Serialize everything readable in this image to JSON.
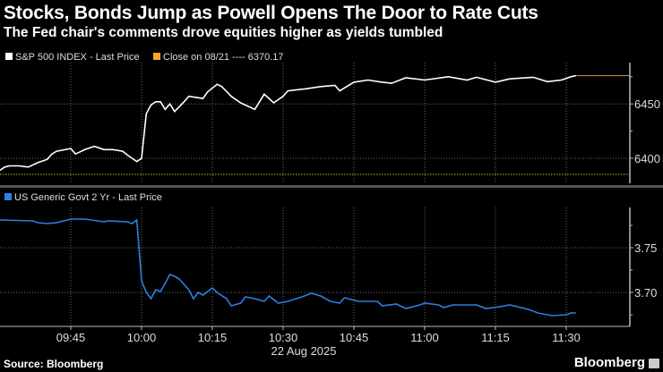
{
  "title": "Stocks, Bonds Jump as Powell Opens The Door to Rate Cuts",
  "subtitle": "The Fed chair's comments drove equities higher as yields tumbled",
  "source": "Source: Bloomberg",
  "logo": "Bloomberg",
  "chart_data": [
    {
      "type": "line",
      "legend": [
        "S&P 500 INDEX - Last Price",
        "Close on 08/21 ---- 6370.17"
      ],
      "series": [
        {
          "name": "S&P 500 INDEX - Last Price",
          "color": "#ffffff",
          "x": [
            "09:30",
            "09:31",
            "09:32",
            "09:34",
            "09:36",
            "09:38",
            "09:40",
            "09:41",
            "09:42",
            "09:45",
            "09:46",
            "09:48",
            "09:50",
            "09:52",
            "09:54",
            "09:56",
            "09:57",
            "09:59",
            "10:00",
            "10:01",
            "10:02",
            "10:03",
            "10:04",
            "10:05",
            "10:06",
            "10:07",
            "10:09",
            "10:10",
            "10:13",
            "10:14",
            "10:16",
            "10:17",
            "10:19",
            "10:21",
            "10:24",
            "10:26",
            "10:28",
            "10:30",
            "10:31",
            "10:35",
            "10:38",
            "10:41",
            "10:42",
            "10:45",
            "10:48",
            "10:51",
            "10:53",
            "10:56",
            "11:00",
            "11:05",
            "11:09",
            "11:11",
            "11:15",
            "11:18",
            "11:23",
            "11:26",
            "11:29",
            "11:31",
            "11:32"
          ],
          "values": [
            6389,
            6392,
            6393,
            6393,
            6392,
            6396,
            6399,
            6404,
            6406.5,
            6409,
            6404,
            6408,
            6411,
            6408,
            6408,
            6406.5,
            6403,
            6397,
            6400,
            6441,
            6449,
            6452,
            6452,
            6445,
            6450,
            6443,
            6452,
            6457,
            6455,
            6461,
            6468,
            6466,
            6457,
            6451,
            6445,
            6459,
            6451,
            6457,
            6462,
            6464,
            6466,
            6467,
            6462,
            6470,
            6472,
            6470,
            6469,
            6474,
            6472,
            6475,
            6472,
            6474.5,
            6470,
            6473,
            6474.5,
            6470.5,
            6472,
            6475,
            6476
          ]
        }
      ],
      "reference_line": {
        "name": "Close on 08/21",
        "value": 6370.17,
        "color": "#f5a623"
      },
      "last_price_color": "#c8a04a",
      "y_ticks": [
        "6400",
        "6450"
      ],
      "ylim": [
        6377,
        6488
      ],
      "grid": true
    },
    {
      "type": "line",
      "legend": [
        "US Generic Govt 2 Yr - Last Price"
      ],
      "series": [
        {
          "name": "US Generic Govt 2 Yr - Last Price",
          "color": "#2f7fe0",
          "x": [
            "09:30",
            "09:37",
            "09:38",
            "09:40",
            "09:42",
            "09:45",
            "09:48",
            "09:52",
            "09:53",
            "09:57",
            "09:58",
            "09:59",
            "10:00",
            "10:01",
            "10:02",
            "10:03",
            "10:04",
            "10:05",
            "10:06",
            "10:07",
            "10:08",
            "10:10",
            "10:11",
            "10:12",
            "10:13",
            "10:15",
            "10:16",
            "10:18",
            "10:19",
            "10:21",
            "10:22",
            "10:24",
            "10:26",
            "10:27",
            "10:29",
            "10:31",
            "10:34",
            "10:36",
            "10:38",
            "10:40",
            "10:42",
            "10:43",
            "10:46",
            "10:50",
            "10:51",
            "10:54",
            "10:56",
            "10:59",
            "11:00",
            "11:03",
            "11:04",
            "11:06",
            "11:11",
            "11:13",
            "11:16",
            "11:18",
            "11:22",
            "11:24",
            "11:27",
            "11:30",
            "11:31",
            "11:32"
          ],
          "values": [
            3.781,
            3.78,
            3.778,
            3.777,
            3.778,
            3.782,
            3.782,
            3.779,
            3.78,
            3.779,
            3.777,
            3.781,
            3.713,
            3.7,
            3.693,
            3.703,
            3.701,
            3.71,
            3.72,
            3.718,
            3.715,
            3.703,
            3.693,
            3.7,
            3.697,
            3.705,
            3.7,
            3.693,
            3.685,
            3.688,
            3.695,
            3.693,
            3.69,
            3.696,
            3.688,
            3.69,
            3.695,
            3.699,
            3.696,
            3.69,
            3.688,
            3.694,
            3.69,
            3.69,
            3.685,
            3.687,
            3.682,
            3.686,
            3.688,
            3.686,
            3.683,
            3.686,
            3.686,
            3.682,
            3.684,
            3.686,
            3.681,
            3.677,
            3.674,
            3.675,
            3.677,
            3.677
          ]
        }
      ],
      "y_ticks": [
        "3.70",
        "3.75"
      ],
      "ylim": [
        3.662,
        3.795
      ],
      "grid": true
    }
  ],
  "x_axis": {
    "ticks": [
      "09:45",
      "10:00",
      "10:15",
      "10:30",
      "10:45",
      "11:00",
      "11:15",
      "11:30"
    ],
    "date_label": "22 Aug 2025",
    "xlim": [
      "09:30",
      "11:43"
    ]
  }
}
